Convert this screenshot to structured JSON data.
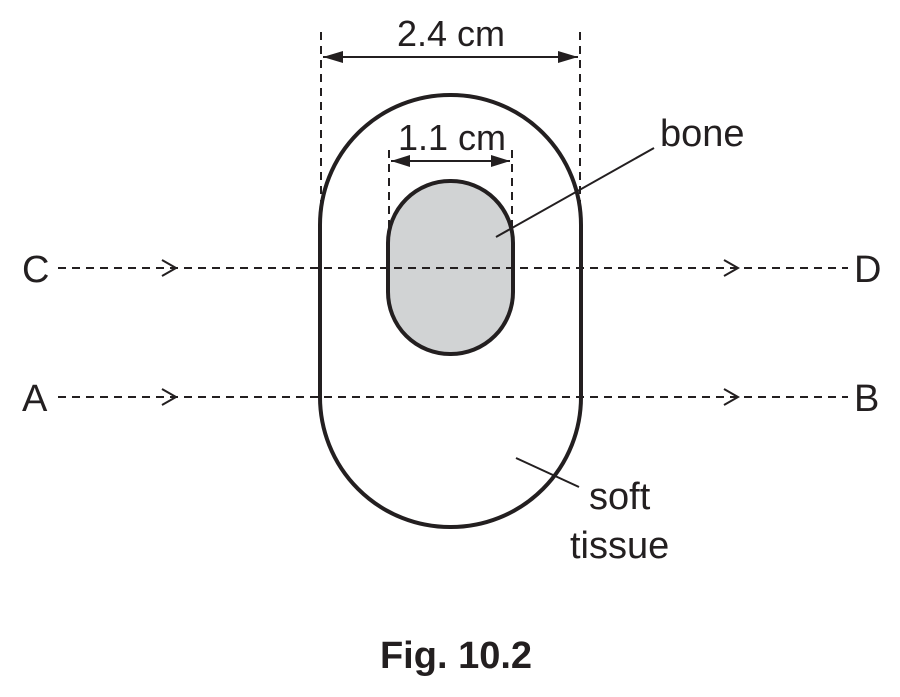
{
  "figure": {
    "caption": "Fig. 10.2",
    "outer_width_label": "2.4 cm",
    "inner_width_label": "1.1 cm",
    "bone_label": "bone",
    "soft_tissue_label_line1": "soft",
    "soft_tissue_label_line2": "tissue",
    "rays": [
      {
        "start": "C",
        "end": "D"
      },
      {
        "start": "A",
        "end": "B"
      }
    ],
    "colors": {
      "bone_fill": "#d1d3d4",
      "outline": "#231f20",
      "soft_tissue_fill": "#ffffff"
    }
  }
}
